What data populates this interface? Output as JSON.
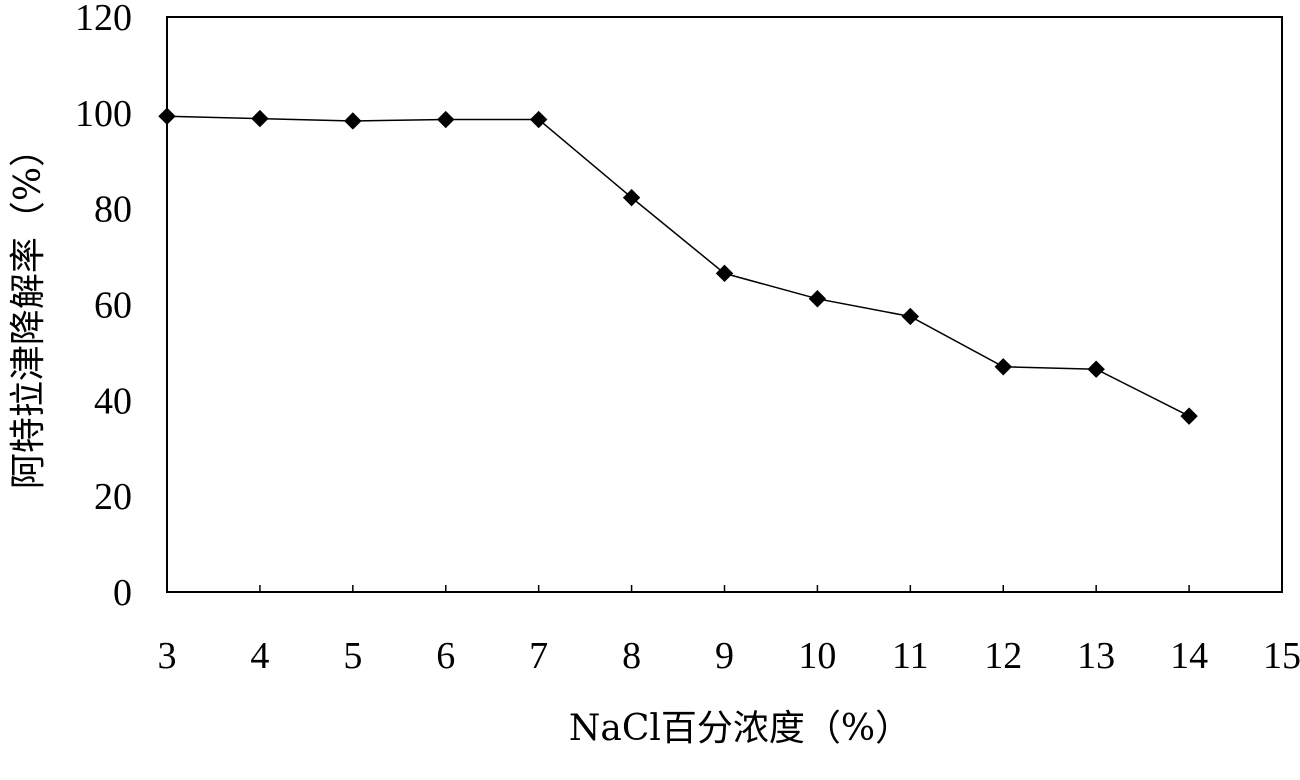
{
  "chart_data": {
    "type": "line",
    "title": "",
    "xlabel": "NaCl百分浓度（%）",
    "ylabel": "阿特拉津降解率（%）",
    "xlim": [
      3,
      15
    ],
    "ylim": [
      0,
      120
    ],
    "x_ticks": [
      "3",
      "4",
      "5",
      "6",
      "7",
      "8",
      "9",
      "10",
      "11",
      "12",
      "13",
      "14",
      "15"
    ],
    "y_ticks": [
      "0",
      "20",
      "40",
      "60",
      "80",
      "100",
      "120"
    ],
    "grid": false,
    "legend": "none",
    "series": [
      {
        "x": [
          3,
          4,
          5,
          6,
          7,
          8,
          9,
          10,
          11,
          12,
          13,
          14
        ],
        "y": [
          99.3,
          98.8,
          98.3,
          98.6,
          98.6,
          82.3,
          66.5,
          61.2,
          57.5,
          47.0,
          46.5,
          36.7
        ],
        "color": "#000000",
        "marker": "diamond"
      }
    ]
  }
}
